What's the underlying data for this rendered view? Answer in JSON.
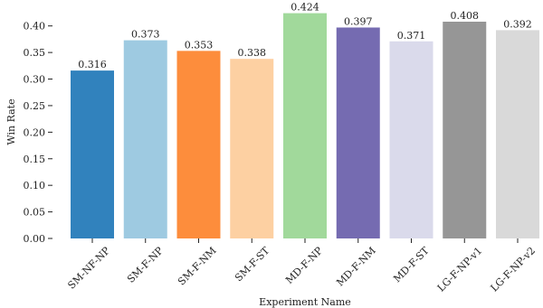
{
  "chart_data": {
    "type": "bar",
    "xlabel": "Experiment Name",
    "ylabel": "Win Rate",
    "ylim": [
      0,
      0.425
    ],
    "yticks": [
      0.0,
      0.05,
      0.1,
      0.15,
      0.2,
      0.25,
      0.3,
      0.35,
      0.4
    ],
    "ytick_labels": [
      "0.00",
      "0.05",
      "0.10",
      "0.15",
      "0.20",
      "0.25",
      "0.30",
      "0.35",
      "0.40"
    ],
    "categories": [
      "SM-NF-NP",
      "SM-F-NP",
      "SM-F-NM",
      "SM-F-ST",
      "MD-F-NP",
      "MD-F-NM",
      "MD-F-ST",
      "LG-F-NP-v1",
      "LG-F-NP-v2"
    ],
    "values": [
      0.316,
      0.373,
      0.353,
      0.338,
      0.424,
      0.397,
      0.371,
      0.408,
      0.392
    ],
    "value_labels": [
      "0.316",
      "0.373",
      "0.353",
      "0.338",
      "0.424",
      "0.397",
      "0.371",
      "0.408",
      "0.392"
    ],
    "colors": [
      "#3182bd",
      "#9ecae1",
      "#fd8d3c",
      "#fdd0a2",
      "#a1d99b",
      "#756bb1",
      "#dadaeb",
      "#969696",
      "#d9d9d9"
    ],
    "grid": false,
    "legend": "none"
  }
}
